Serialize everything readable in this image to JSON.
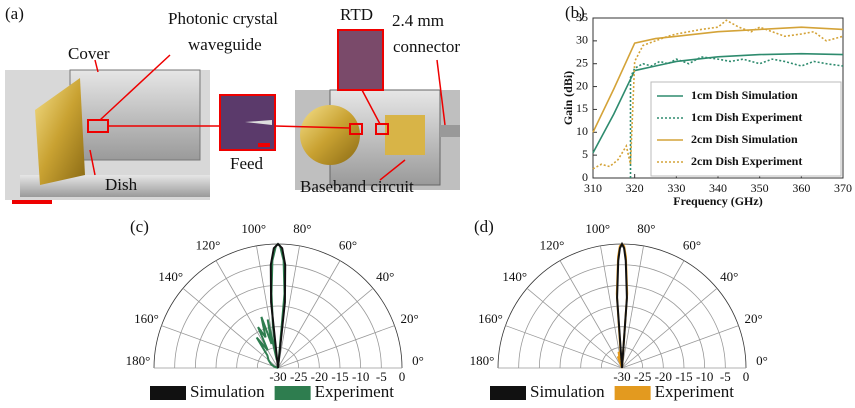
{
  "panel_a": {
    "panel_label": "(a)",
    "cover": "Cover",
    "waveguide": [
      "Photonic crystal",
      "waveguide"
    ],
    "rtd": "RTD",
    "connector": [
      "2.4 mm",
      "connector"
    ],
    "feed": "Feed",
    "dish": "Dish",
    "baseband": "Baseband circuit"
  },
  "chart_data": [
    {
      "type": "line",
      "panel_label": "(b)",
      "x_label": "Frequency (GHz)",
      "y_label": "Gain (dBi)",
      "xlim": [
        310,
        370
      ],
      "xticks": [
        310,
        320,
        330,
        340,
        350,
        360,
        370
      ],
      "ylim": [
        0,
        35
      ],
      "yticks": [
        0,
        5,
        10,
        15,
        20,
        25,
        30,
        35
      ],
      "legend": "lower right",
      "series": [
        {
          "name": "1cm Dish Simulation",
          "color": "#2e8b6e",
          "style": "solid",
          "x": [
            310,
            315,
            320,
            325,
            330,
            340,
            350,
            360,
            370
          ],
          "values": [
            5.5,
            14,
            23.5,
            24.5,
            25.5,
            26.5,
            27,
            27.2,
            27
          ]
        },
        {
          "name": "1cm Dish Experiment",
          "color": "#2e8b6e",
          "style": "dotted",
          "x": [
            319,
            319,
            320,
            322,
            324,
            326,
            328,
            330,
            333,
            336,
            340,
            343,
            346,
            350,
            353,
            356,
            360,
            363,
            366,
            370
          ],
          "values": [
            0,
            22,
            24,
            25,
            24.5,
            25.5,
            25,
            26,
            25,
            26.5,
            26,
            25.5,
            26,
            25,
            26,
            25.5,
            24.5,
            25.5,
            25,
            24.5
          ]
        },
        {
          "name": "2cm Dish Simulation",
          "color": "#d4a338",
          "style": "solid",
          "x": [
            310,
            315,
            320,
            325,
            330,
            340,
            350,
            360,
            370
          ],
          "values": [
            10,
            19.5,
            29.5,
            30.5,
            31,
            32,
            32.5,
            33,
            32.5
          ]
        },
        {
          "name": "2cm Dish Experiment",
          "color": "#d4a338",
          "style": "dotted",
          "x": [
            310,
            312,
            314,
            316,
            318,
            319,
            320,
            322,
            325,
            328,
            330,
            333,
            336,
            340,
            342,
            345,
            348,
            350,
            353,
            356,
            360,
            363,
            366,
            368,
            370
          ],
          "values": [
            2,
            3,
            2.5,
            4,
            7,
            3,
            25.5,
            29,
            30,
            31,
            31.5,
            32,
            32.5,
            33,
            34.5,
            33,
            32,
            33,
            32,
            31,
            31.5,
            32,
            30,
            30.5,
            31
          ]
        }
      ]
    },
    {
      "type": "polar",
      "panel_label": "(c)",
      "rlim": [
        -30,
        0
      ],
      "rticks": [
        -30,
        -25,
        -20,
        -15,
        -10,
        -5,
        0
      ],
      "thetaticks": [
        {
          "value": 0,
          "label": "0°"
        },
        {
          "value": 20,
          "label": "20°"
        },
        {
          "value": 40,
          "label": "40°"
        },
        {
          "value": 60,
          "label": "60°"
        },
        {
          "value": 80,
          "label": "80°"
        },
        {
          "value": 100,
          "label": "100°"
        },
        {
          "value": 120,
          "label": "120°"
        },
        {
          "value": 140,
          "label": "140°"
        },
        {
          "value": 160,
          "label": "160°"
        },
        {
          "value": 180,
          "label": "180°"
        }
      ],
      "series": [
        {
          "name": "Simulation",
          "color": "#111111",
          "theta": [
            82,
            84,
            86,
            88,
            90,
            92,
            94,
            96,
            98
          ],
          "values": [
            -30,
            -14,
            -5,
            -1,
            0,
            -1,
            -5,
            -14,
            -30
          ]
        },
        {
          "name": "Experiment",
          "color": "#2e7d4f",
          "theta": [
            83,
            85,
            87,
            89,
            90,
            91,
            93,
            95,
            97,
            99,
            102,
            105,
            108,
            112,
            116,
            120,
            125,
            130,
            140,
            150,
            160,
            170
          ],
          "values": [
            -30,
            -12,
            -4,
            -0.5,
            0,
            -0.5,
            -4,
            -12,
            -20,
            -28,
            -18,
            -24,
            -17,
            -22,
            -19,
            -25,
            -21,
            -26,
            -27,
            -28,
            -29,
            -30
          ]
        }
      ]
    },
    {
      "type": "polar",
      "panel_label": "(d)",
      "rlim": [
        -30,
        0
      ],
      "rticks": [
        -30,
        -25,
        -20,
        -15,
        -10,
        -5,
        0
      ],
      "thetaticks": [
        {
          "value": 0,
          "label": "0°"
        },
        {
          "value": 20,
          "label": "20°"
        },
        {
          "value": 40,
          "label": "40°"
        },
        {
          "value": 60,
          "label": "60°"
        },
        {
          "value": 80,
          "label": "80°"
        },
        {
          "value": 100,
          "label": "100°"
        },
        {
          "value": 120,
          "label": "120°"
        },
        {
          "value": 140,
          "label": "140°"
        },
        {
          "value": 160,
          "label": "160°"
        },
        {
          "value": 180,
          "label": "180°"
        }
      ],
      "series": [
        {
          "name": "Simulation",
          "color": "#111111",
          "theta": [
            84,
            86,
            88,
            89,
            90,
            91,
            92,
            94,
            96
          ],
          "values": [
            -30,
            -13,
            -4,
            -1,
            0,
            -1,
            -4,
            -13,
            -30
          ]
        },
        {
          "name": "Experiment",
          "color": "#e39a1f",
          "theta": [
            85,
            86,
            88,
            89,
            90,
            91,
            92,
            94,
            95,
            98,
            102,
            106,
            110,
            115
          ],
          "values": [
            -30,
            -12,
            -3,
            -0.5,
            0,
            -0.5,
            -3,
            -12,
            -25,
            -27,
            -26,
            -28,
            -27,
            -30
          ]
        }
      ]
    }
  ]
}
